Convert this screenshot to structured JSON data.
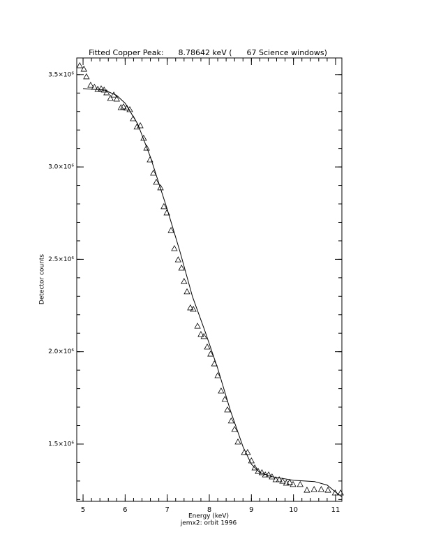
{
  "chart_data": {
    "type": "scatter",
    "title": "Fitted Copper Peak:      8.78642 keV (      67 Science windows)",
    "x_label": "Energy (keV)",
    "subtitle": "jemx2: orbit 1996",
    "y_label": "Detector counts",
    "xlim": [
      4.85,
      11.15
    ],
    "xticks": [
      5,
      6,
      7,
      8,
      9,
      10,
      11
    ],
    "ylim": [
      1190000,
      3590000
    ],
    "yticks": [
      {
        "value": 1500000,
        "label": "1.5×10⁶"
      },
      {
        "value": 2000000,
        "label": "2.0×10⁶"
      },
      {
        "value": 2500000,
        "label": "2.5×10⁶"
      },
      {
        "value": 3000000,
        "label": "3.0×10⁶"
      },
      {
        "value": 3500000,
        "label": "3.5×10⁶"
      }
    ],
    "minor_ticks": 5,
    "series": [
      {
        "style": "markers",
        "marker": "triangle",
        "color": "#000000",
        "x": [
          4.92,
          5.02,
          5.08,
          5.18,
          5.27,
          5.35,
          5.43,
          5.5,
          5.56,
          5.65,
          5.73,
          5.8,
          5.9,
          5.96,
          6.04,
          6.11,
          6.19,
          6.28,
          6.36,
          6.44,
          6.51,
          6.59,
          6.67,
          6.74,
          6.84,
          6.92,
          6.99,
          7.09,
          7.17,
          7.26,
          7.34,
          7.4,
          7.47,
          7.55,
          7.62,
          7.72,
          7.8,
          7.87,
          7.95,
          8.03,
          8.12,
          8.2,
          8.28,
          8.37,
          8.43,
          8.52,
          8.6,
          8.68,
          8.83,
          8.91,
          9.0,
          9.08,
          9.16,
          9.25,
          9.33,
          9.41,
          9.49,
          9.58,
          9.66,
          9.74,
          9.83,
          9.91,
          9.99,
          10.16,
          10.32,
          10.49,
          10.66,
          10.82,
          10.99,
          11.12
        ],
        "values": [
          3549000,
          3530000,
          3489000,
          3443000,
          3432000,
          3421000,
          3424000,
          3417000,
          3402000,
          3372000,
          3390000,
          3368000,
          3322000,
          3326000,
          3319000,
          3311000,
          3262000,
          3217000,
          3224000,
          3156000,
          3103000,
          3039000,
          2967000,
          2918000,
          2888000,
          2786000,
          2752000,
          2657000,
          2559000,
          2498000,
          2453000,
          2381000,
          2325000,
          2238000,
          2230000,
          2139000,
          2094000,
          2083000,
          2026000,
          1988000,
          1935000,
          1871000,
          1788000,
          1743000,
          1686000,
          1626000,
          1580000,
          1512000,
          1455000,
          1455000,
          1410000,
          1372000,
          1353000,
          1346000,
          1334000,
          1334000,
          1323000,
          1308000,
          1308000,
          1300000,
          1289000,
          1293000,
          1282000,
          1282000,
          1251000,
          1255000,
          1255000,
          1251000,
          1236000,
          1236000
        ]
      },
      {
        "style": "line",
        "color": "#000000",
        "x": [
          5.0,
          5.5,
          5.8,
          6.0,
          6.3,
          6.6,
          7.0,
          7.3,
          7.6,
          7.9,
          8.2,
          8.5,
          8.8,
          9.0,
          9.2,
          9.5,
          10.0,
          10.5,
          10.8,
          11.0,
          11.15
        ],
        "values": [
          3424000,
          3417000,
          3387000,
          3345000,
          3232000,
          3054000,
          2771000,
          2544000,
          2298000,
          2109000,
          1909000,
          1682000,
          1486000,
          1391000,
          1346000,
          1323000,
          1304000,
          1297000,
          1278000,
          1240000,
          1214000
        ]
      }
    ]
  }
}
